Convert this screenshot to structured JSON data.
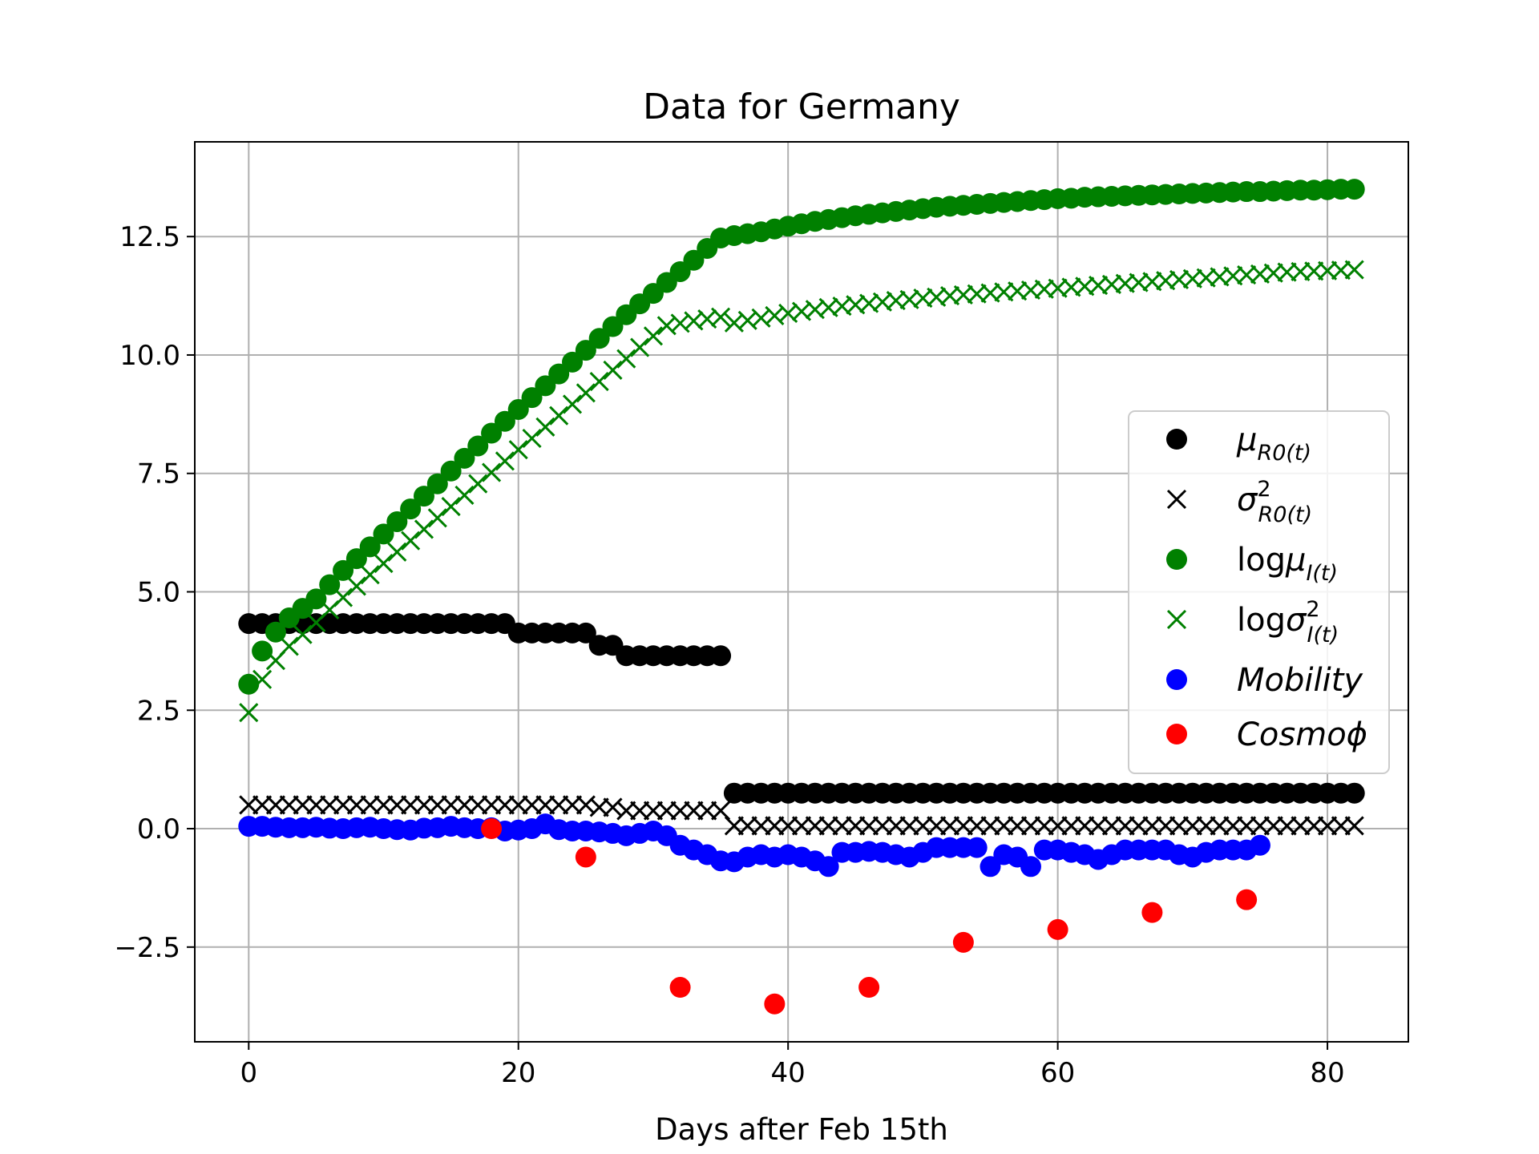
{
  "chart_data": {
    "type": "scatter",
    "title": "Data for Germany",
    "xlabel": "Days after Feb 15th",
    "ylabel": "",
    "xlim": [
      -4,
      86
    ],
    "ylim": [
      -4.5,
      14.5
    ],
    "xticks": [
      0,
      20,
      40,
      60,
      80
    ],
    "xtick_labels": [
      "0",
      "20",
      "40",
      "60",
      "80"
    ],
    "yticks": [
      -2.5,
      0.0,
      2.5,
      5.0,
      7.5,
      10.0,
      12.5
    ],
    "ytick_labels": [
      "−2.5",
      "0.0",
      "2.5",
      "5.0",
      "7.5",
      "10.0",
      "12.5"
    ],
    "grid": true,
    "legend_position": "right",
    "series": [
      {
        "name": "μ_{R0(t)}",
        "legend_main": "μ",
        "legend_sub": "R0(t)",
        "legend_sup": "",
        "legend_prefix": "",
        "marker": "circle",
        "color": "#000000",
        "segments": [
          {
            "x_start": 0,
            "x_end": 19,
            "y": [
              4.33,
              4.33,
              4.33,
              4.33,
              4.33,
              4.33,
              4.33,
              4.33,
              4.33,
              4.33,
              4.33,
              4.33,
              4.33,
              4.33,
              4.33,
              4.33,
              4.33,
              4.33,
              4.33,
              4.33
            ]
          },
          {
            "x_start": 20,
            "x_end": 35,
            "y": [
              4.13,
              4.13,
              4.13,
              4.13,
              4.13,
              4.13,
              3.87,
              3.87,
              3.65,
              3.65,
              3.65,
              3.65,
              3.65,
              3.65,
              3.65,
              3.65
            ]
          },
          {
            "x_start": 36,
            "x_end": 82,
            "y_const": 0.75
          }
        ]
      },
      {
        "name": "σ²_{R0(t)}",
        "legend_main": "σ",
        "legend_sub": "R0(t)",
        "legend_sup": "2",
        "legend_prefix": "",
        "marker": "x",
        "color": "#000000",
        "segments": [
          {
            "x_start": 0,
            "x_end": 19,
            "y_const": 0.5
          },
          {
            "x_start": 20,
            "x_end": 35,
            "y": [
              0.5,
              0.5,
              0.5,
              0.5,
              0.5,
              0.5,
              0.45,
              0.45,
              0.38,
              0.38,
              0.38,
              0.38,
              0.38,
              0.38,
              0.38,
              0.38
            ]
          },
          {
            "x_start": 36,
            "x_end": 82,
            "y_const": 0.06
          }
        ]
      },
      {
        "name": "logμ_{I(t)}",
        "legend_main": "μ",
        "legend_sub": "I(t)",
        "legend_sup": "",
        "legend_prefix": "log",
        "marker": "circle",
        "color": "#008000",
        "x_start": 0,
        "values": [
          3.05,
          3.75,
          4.15,
          4.45,
          4.65,
          4.85,
          5.15,
          5.45,
          5.7,
          5.95,
          6.22,
          6.48,
          6.75,
          7.02,
          7.28,
          7.55,
          7.82,
          8.08,
          8.35,
          8.6,
          8.85,
          9.1,
          9.35,
          9.6,
          9.85,
          10.1,
          10.35,
          10.6,
          10.85,
          11.08,
          11.3,
          11.53,
          11.76,
          12.0,
          12.25,
          12.47,
          12.52,
          12.56,
          12.6,
          12.66,
          12.72,
          12.77,
          12.82,
          12.86,
          12.9,
          12.94,
          12.97,
          13.0,
          13.03,
          13.06,
          13.09,
          13.12,
          13.14,
          13.16,
          13.18,
          13.2,
          13.22,
          13.24,
          13.26,
          13.28,
          13.3,
          13.31,
          13.33,
          13.34,
          13.35,
          13.36,
          13.37,
          13.38,
          13.39,
          13.4,
          13.41,
          13.42,
          13.43,
          13.44,
          13.45,
          13.45,
          13.46,
          13.47,
          13.48,
          13.48,
          13.49,
          13.5,
          13.5
        ]
      },
      {
        "name": "logσ²_{I(t)}",
        "legend_main": "σ",
        "legend_sub": "I(t)",
        "legend_sup": "2",
        "legend_prefix": "log",
        "marker": "x",
        "color": "#008000",
        "x_start": 0,
        "values": [
          2.45,
          3.15,
          3.55,
          3.85,
          4.1,
          4.35,
          4.62,
          4.88,
          5.12,
          5.36,
          5.6,
          5.84,
          6.08,
          6.32,
          6.56,
          6.8,
          7.04,
          7.28,
          7.52,
          7.76,
          8.0,
          8.24,
          8.48,
          8.72,
          8.96,
          9.2,
          9.44,
          9.68,
          9.92,
          10.16,
          10.4,
          10.62,
          10.67,
          10.72,
          10.76,
          10.8,
          10.68,
          10.73,
          10.78,
          10.83,
          10.88,
          10.92,
          10.96,
          11.0,
          11.03,
          11.06,
          11.09,
          11.12,
          11.15,
          11.17,
          11.2,
          11.22,
          11.25,
          11.27,
          11.29,
          11.31,
          11.33,
          11.35,
          11.37,
          11.39,
          11.41,
          11.43,
          11.45,
          11.47,
          11.49,
          11.51,
          11.53,
          11.55,
          11.57,
          11.59,
          11.61,
          11.63,
          11.65,
          11.67,
          11.69,
          11.71,
          11.73,
          11.75,
          11.76,
          11.77,
          11.78,
          11.79,
          11.8
        ]
      },
      {
        "name": "Mobility",
        "legend_main": "Mobility",
        "legend_sub": "",
        "legend_sup": "",
        "legend_prefix": "",
        "marker": "circle",
        "color": "#0000ff",
        "x_start": 0,
        "values": [
          0.05,
          0.05,
          0.03,
          0.02,
          0.02,
          0.03,
          0.01,
          0.0,
          0.02,
          0.03,
          0.0,
          -0.02,
          -0.03,
          0.01,
          0.02,
          0.05,
          0.02,
          0.0,
          0.02,
          -0.05,
          -0.03,
          0.0,
          0.1,
          -0.02,
          -0.05,
          -0.05,
          -0.07,
          -0.1,
          -0.15,
          -0.1,
          -0.05,
          -0.15,
          -0.35,
          -0.45,
          -0.55,
          -0.68,
          -0.7,
          -0.6,
          -0.55,
          -0.6,
          -0.55,
          -0.6,
          -0.68,
          -0.8,
          -0.5,
          -0.5,
          -0.48,
          -0.5,
          -0.55,
          -0.6,
          -0.5,
          -0.4,
          -0.4,
          -0.4,
          -0.4,
          -0.8,
          -0.55,
          -0.6,
          -0.8,
          -0.45,
          -0.45,
          -0.5,
          -0.55,
          -0.65,
          -0.55,
          -0.45,
          -0.45,
          -0.45,
          -0.45,
          -0.55,
          -0.6,
          -0.5,
          -0.45,
          -0.45,
          -0.45,
          -0.35
        ]
      },
      {
        "name": "Cosmoϕ",
        "legend_main": "Cosmoϕ",
        "legend_sub": "",
        "legend_sup": "",
        "legend_prefix": "",
        "marker": "circle",
        "color": "#ff0000",
        "points": [
          [
            18,
            0.0
          ],
          [
            25,
            -0.6
          ],
          [
            32,
            -3.35
          ],
          [
            39,
            -3.7
          ],
          [
            46,
            -3.35
          ],
          [
            53,
            -2.4
          ],
          [
            60,
            -2.13
          ],
          [
            67,
            -1.77
          ],
          [
            74,
            -1.5
          ]
        ]
      }
    ]
  }
}
